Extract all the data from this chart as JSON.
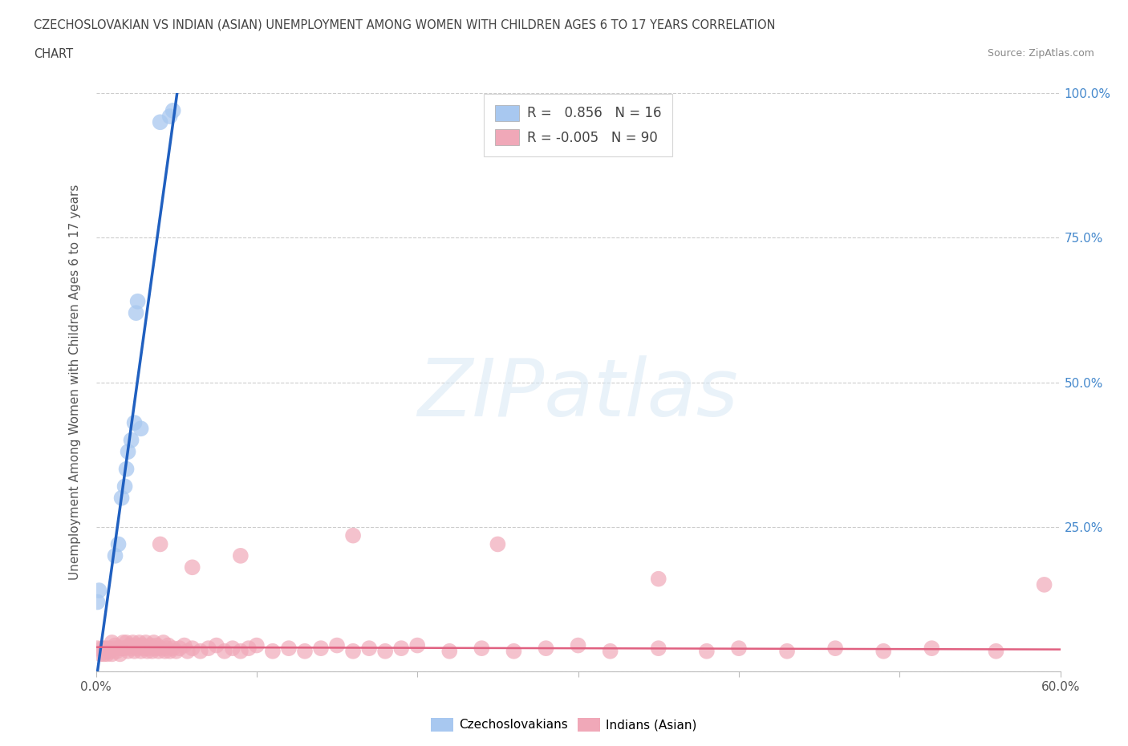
{
  "title_line1": "CZECHOSLOVAKIAN VS INDIAN (ASIAN) UNEMPLOYMENT AMONG WOMEN WITH CHILDREN AGES 6 TO 17 YEARS CORRELATION",
  "title_line2": "CHART",
  "source": "Source: ZipAtlas.com",
  "ylabel": "Unemployment Among Women with Children Ages 6 to 17 years",
  "xlim": [
    0.0,
    0.6
  ],
  "ylim": [
    0.0,
    1.0
  ],
  "yticks": [
    0.0,
    0.25,
    0.5,
    0.75,
    1.0
  ],
  "yticklabels_right": [
    "",
    "25.0%",
    "50.0%",
    "75.0%",
    "100.0%"
  ],
  "blue_R": 0.856,
  "blue_N": 16,
  "pink_R": -0.005,
  "pink_N": 90,
  "blue_color": "#a8c8f0",
  "pink_color": "#f0a8b8",
  "blue_line_color": "#2060c0",
  "pink_line_color": "#e06080",
  "grid_color": "#cccccc",
  "text_color": "#444444",
  "right_axis_color": "#4488cc",
  "background_color": "#ffffff",
  "watermark_text": "ZIPatlas",
  "blue_points_x": [
    0.001,
    0.002,
    0.012,
    0.014,
    0.016,
    0.018,
    0.019,
    0.02,
    0.022,
    0.024,
    0.025,
    0.026,
    0.028,
    0.04,
    0.046,
    0.048
  ],
  "blue_points_y": [
    0.12,
    0.14,
    0.2,
    0.22,
    0.3,
    0.32,
    0.35,
    0.38,
    0.4,
    0.43,
    0.62,
    0.64,
    0.42,
    0.95,
    0.96,
    0.97
  ],
  "pink_points_x": [
    0.001,
    0.003,
    0.004,
    0.005,
    0.006,
    0.007,
    0.008,
    0.009,
    0.01,
    0.01,
    0.011,
    0.012,
    0.013,
    0.014,
    0.015,
    0.016,
    0.017,
    0.018,
    0.019,
    0.02,
    0.021,
    0.022,
    0.023,
    0.024,
    0.025,
    0.026,
    0.027,
    0.028,
    0.029,
    0.03,
    0.031,
    0.032,
    0.033,
    0.034,
    0.035,
    0.036,
    0.037,
    0.038,
    0.039,
    0.04,
    0.042,
    0.043,
    0.044,
    0.045,
    0.046,
    0.048,
    0.05,
    0.052,
    0.055,
    0.057,
    0.06,
    0.065,
    0.07,
    0.075,
    0.08,
    0.085,
    0.09,
    0.095,
    0.1,
    0.11,
    0.12,
    0.13,
    0.14,
    0.15,
    0.16,
    0.17,
    0.18,
    0.19,
    0.2,
    0.22,
    0.24,
    0.26,
    0.28,
    0.3,
    0.32,
    0.35,
    0.38,
    0.4,
    0.43,
    0.46,
    0.49,
    0.52,
    0.56,
    0.59,
    0.04,
    0.06,
    0.09,
    0.16,
    0.25,
    0.35
  ],
  "pink_points_y": [
    0.04,
    0.03,
    0.04,
    0.03,
    0.04,
    0.03,
    0.04,
    0.035,
    0.05,
    0.03,
    0.04,
    0.045,
    0.035,
    0.04,
    0.03,
    0.04,
    0.05,
    0.04,
    0.05,
    0.035,
    0.045,
    0.04,
    0.05,
    0.035,
    0.045,
    0.04,
    0.05,
    0.035,
    0.045,
    0.04,
    0.05,
    0.035,
    0.04,
    0.045,
    0.035,
    0.05,
    0.04,
    0.045,
    0.035,
    0.04,
    0.05,
    0.035,
    0.04,
    0.045,
    0.035,
    0.04,
    0.035,
    0.04,
    0.045,
    0.035,
    0.04,
    0.035,
    0.04,
    0.045,
    0.035,
    0.04,
    0.035,
    0.04,
    0.045,
    0.035,
    0.04,
    0.035,
    0.04,
    0.045,
    0.035,
    0.04,
    0.035,
    0.04,
    0.045,
    0.035,
    0.04,
    0.035,
    0.04,
    0.045,
    0.035,
    0.04,
    0.035,
    0.04,
    0.035,
    0.04,
    0.035,
    0.04,
    0.035,
    0.15,
    0.22,
    0.18,
    0.2,
    0.235,
    0.22,
    0.16
  ],
  "blue_line_x": [
    0.0,
    0.052
  ],
  "blue_line_y": [
    -0.02,
    1.03
  ],
  "pink_line_x": [
    0.0,
    0.6
  ],
  "pink_line_y": [
    0.042,
    0.038
  ]
}
